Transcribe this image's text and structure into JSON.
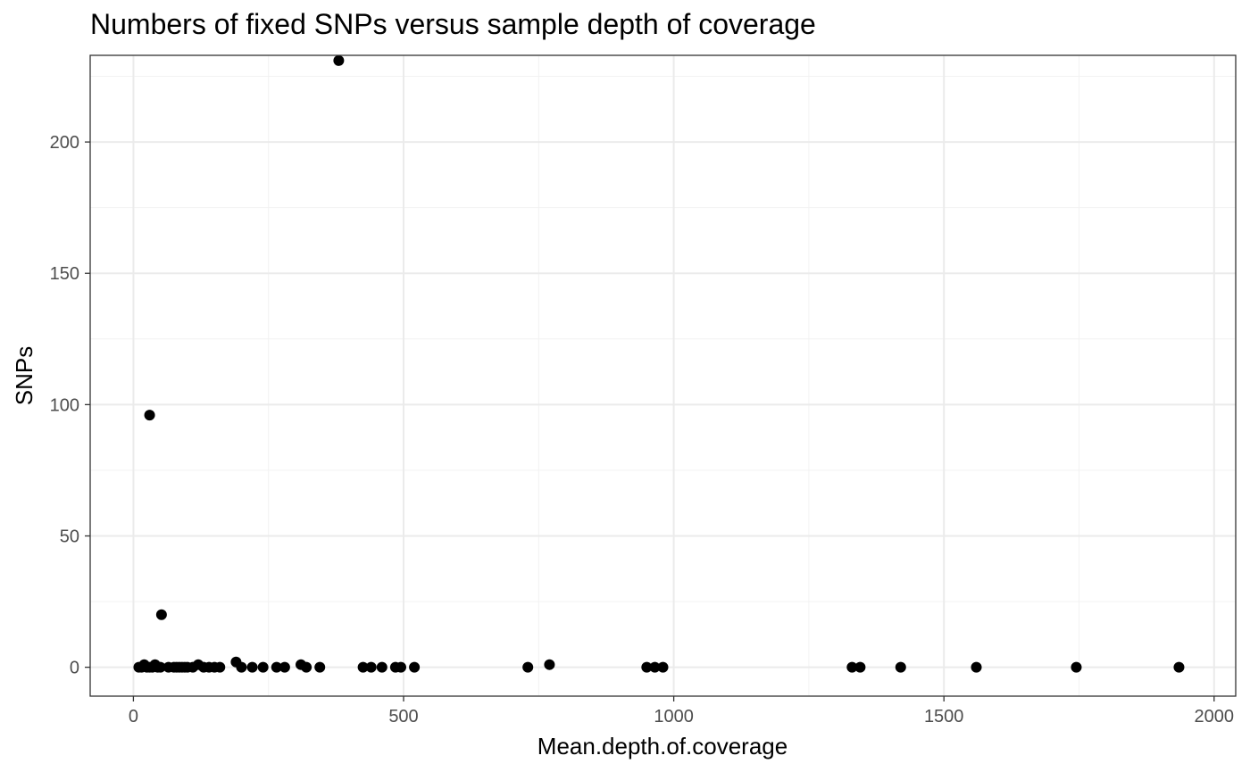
{
  "chart_data": {
    "type": "scatter",
    "title": "Numbers of fixed SNPs versus sample depth of coverage",
    "xlabel": "Mean.depth.of.coverage",
    "ylabel": "SNPs",
    "xlim": [
      -80,
      2040
    ],
    "ylim": [
      -11,
      233
    ],
    "x_ticks": [
      0,
      500,
      1000,
      1500,
      2000
    ],
    "x_tick_labels": [
      "0",
      "500",
      "1000",
      "1500",
      "2000"
    ],
    "y_ticks": [
      0,
      50,
      100,
      150,
      200
    ],
    "y_tick_labels": [
      "0",
      "50",
      "100",
      "150",
      "200"
    ],
    "grid": true,
    "theme": "black-and-white",
    "colors": {
      "point": "#000000",
      "grid_major": "#ebebeb",
      "grid_minor": "#f2f2f2",
      "border": "#333333"
    },
    "points": [
      {
        "x": 380,
        "y": 231
      },
      {
        "x": 30,
        "y": 96
      },
      {
        "x": 52,
        "y": 20
      },
      {
        "x": 190,
        "y": 2
      },
      {
        "x": 770,
        "y": 1
      },
      {
        "x": 10,
        "y": 0
      },
      {
        "x": 15,
        "y": 0
      },
      {
        "x": 20,
        "y": 1
      },
      {
        "x": 25,
        "y": 0
      },
      {
        "x": 30,
        "y": 0
      },
      {
        "x": 35,
        "y": 0
      },
      {
        "x": 40,
        "y": 1
      },
      {
        "x": 45,
        "y": 0
      },
      {
        "x": 50,
        "y": 0
      },
      {
        "x": 65,
        "y": 0
      },
      {
        "x": 75,
        "y": 0
      },
      {
        "x": 80,
        "y": 0
      },
      {
        "x": 85,
        "y": 0
      },
      {
        "x": 90,
        "y": 0
      },
      {
        "x": 95,
        "y": 0
      },
      {
        "x": 100,
        "y": 0
      },
      {
        "x": 110,
        "y": 0
      },
      {
        "x": 120,
        "y": 1
      },
      {
        "x": 130,
        "y": 0
      },
      {
        "x": 140,
        "y": 0
      },
      {
        "x": 150,
        "y": 0
      },
      {
        "x": 160,
        "y": 0
      },
      {
        "x": 200,
        "y": 0
      },
      {
        "x": 220,
        "y": 0
      },
      {
        "x": 240,
        "y": 0
      },
      {
        "x": 265,
        "y": 0
      },
      {
        "x": 280,
        "y": 0
      },
      {
        "x": 310,
        "y": 1
      },
      {
        "x": 320,
        "y": 0
      },
      {
        "x": 345,
        "y": 0
      },
      {
        "x": 425,
        "y": 0
      },
      {
        "x": 440,
        "y": 0
      },
      {
        "x": 460,
        "y": 0
      },
      {
        "x": 485,
        "y": 0
      },
      {
        "x": 495,
        "y": 0
      },
      {
        "x": 520,
        "y": 0
      },
      {
        "x": 730,
        "y": 0
      },
      {
        "x": 950,
        "y": 0
      },
      {
        "x": 965,
        "y": 0
      },
      {
        "x": 980,
        "y": 0
      },
      {
        "x": 1330,
        "y": 0
      },
      {
        "x": 1345,
        "y": 0
      },
      {
        "x": 1420,
        "y": 0
      },
      {
        "x": 1560,
        "y": 0
      },
      {
        "x": 1745,
        "y": 0
      },
      {
        "x": 1935,
        "y": 0
      }
    ]
  }
}
